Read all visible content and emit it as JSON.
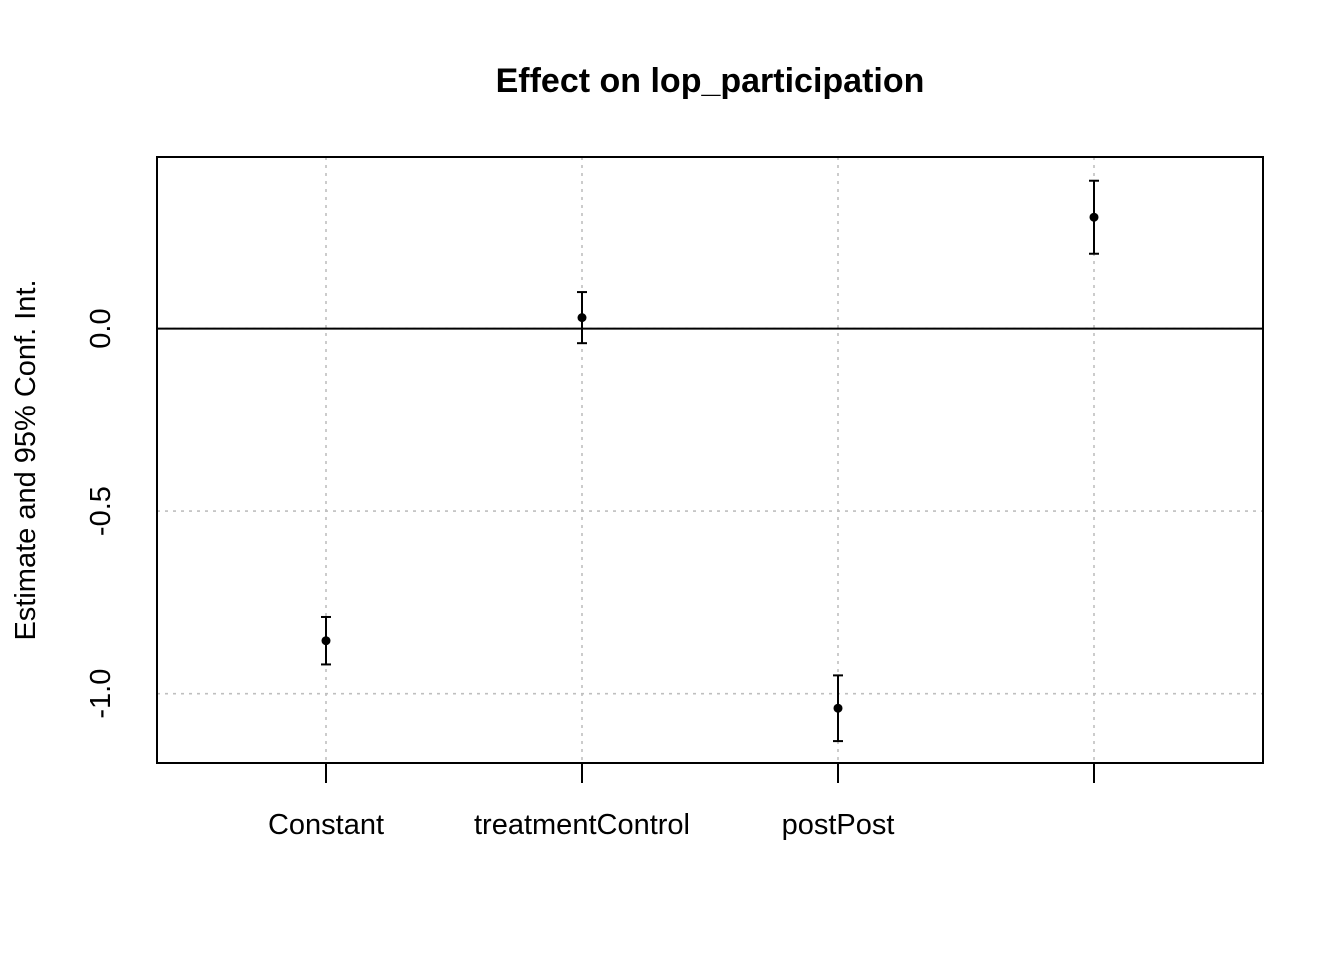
{
  "chart_data": {
    "type": "scatter",
    "title": "Effect on lop_participation",
    "xlabel": "",
    "ylabel": "Estimate and 95% Conf. Int.",
    "categories": [
      "Constant",
      "treatmentControl",
      "postPost",
      ""
    ],
    "estimates": [
      -0.855,
      0.03,
      -1.04,
      0.305
    ],
    "ci_lower": [
      -0.92,
      -0.04,
      -1.13,
      0.205
    ],
    "ci_upper": [
      -0.79,
      0.1,
      -0.95,
      0.405
    ],
    "ylim": [
      -1.19,
      0.47
    ],
    "y_ticks": [
      -1.0,
      -0.5,
      0.0
    ],
    "y_tick_labels": [
      "-1.0",
      "-0.5",
      "0.0"
    ],
    "reference_line": 0,
    "grid": true
  }
}
